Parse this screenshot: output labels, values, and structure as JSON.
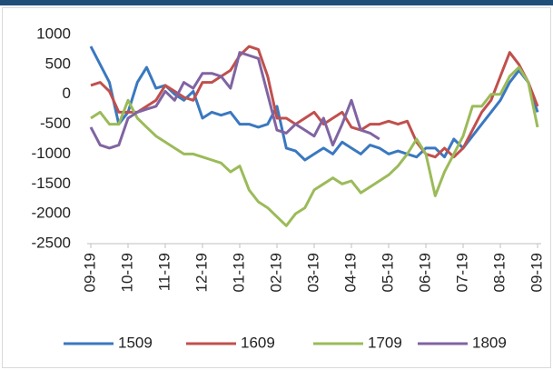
{
  "chart_data": {
    "type": "line",
    "categories": [
      "09-19",
      null,
      null,
      null,
      "10-19",
      null,
      null,
      null,
      "11-19",
      null,
      null,
      null,
      "12-19",
      null,
      null,
      null,
      "01-19",
      null,
      null,
      null,
      "02-19",
      null,
      null,
      null,
      "03-19",
      null,
      null,
      null,
      "04-19",
      null,
      null,
      null,
      "05-19",
      null,
      null,
      null,
      "06-19",
      null,
      null,
      null,
      "07-19",
      null,
      null,
      null,
      "08-19",
      null,
      null,
      null,
      "09-19"
    ],
    "series": [
      {
        "name": "1509",
        "color": "#3a78c0",
        "values": [
          800,
          500,
          200,
          -500,
          -300,
          200,
          450,
          100,
          150,
          0,
          -100,
          50,
          -400,
          -300,
          -350,
          -300,
          -500,
          -500,
          -550,
          -500,
          -200,
          -900,
          -950,
          -1100,
          -1000,
          -900,
          -1000,
          -800,
          -900,
          -1000,
          -850,
          -900,
          -1000,
          -950,
          -1000,
          -1050,
          -900,
          -900,
          -1050,
          -750,
          -900,
          -700,
          -500,
          -300,
          -100,
          200,
          400,
          200,
          -300
        ]
      },
      {
        "name": "1609",
        "color": "#c0504d",
        "values": [
          150,
          200,
          50,
          -300,
          -300,
          -300,
          -200,
          -100,
          150,
          50,
          -50,
          -100,
          200,
          200,
          300,
          400,
          650,
          800,
          750,
          300,
          -400,
          -400,
          -500,
          -400,
          -300,
          -500,
          -400,
          -300,
          -550,
          -600,
          -500,
          -500,
          -450,
          -500,
          -450,
          -800,
          -1000,
          -1050,
          -900,
          -1050,
          -900,
          -600,
          -300,
          -100,
          300,
          700,
          500,
          200,
          -200
        ]
      },
      {
        "name": "1709",
        "color": "#9bbb59",
        "values": [
          -400,
          -300,
          -500,
          -500,
          -100,
          -400,
          -550,
          -700,
          -800,
          -900,
          -1000,
          -1000,
          -1050,
          -1100,
          -1150,
          -1300,
          -1200,
          -1600,
          -1800,
          -1900,
          -2050,
          -2200,
          -2000,
          -1900,
          -1600,
          -1500,
          -1400,
          -1500,
          -1450,
          -1650,
          -1550,
          -1450,
          -1350,
          -1200,
          -1000,
          -750,
          -1000,
          -1700,
          -1300,
          -1000,
          -700,
          -200,
          -200,
          0,
          0,
          300,
          450,
          200,
          -550
        ]
      },
      {
        "name": "1809",
        "color": "#8064a2",
        "values": [
          -550,
          -850,
          -900,
          -850,
          -400,
          -300,
          -250,
          -200,
          50,
          -100,
          200,
          100,
          350,
          350,
          300,
          100,
          700,
          650,
          600,
          0,
          -600,
          -650,
          -500,
          -600,
          -700,
          -400,
          -850,
          -500,
          -100,
          -600,
          -650,
          -750,
          null,
          null,
          null,
          null,
          null,
          null,
          null,
          null,
          null,
          null,
          null,
          null,
          null,
          null,
          null,
          null,
          null
        ]
      }
    ],
    "ylim": [
      -2500,
      1000
    ],
    "yticks": [
      -2500,
      -2000,
      -1500,
      -1000,
      -500,
      0,
      500,
      1000
    ],
    "legend": "bottom"
  }
}
